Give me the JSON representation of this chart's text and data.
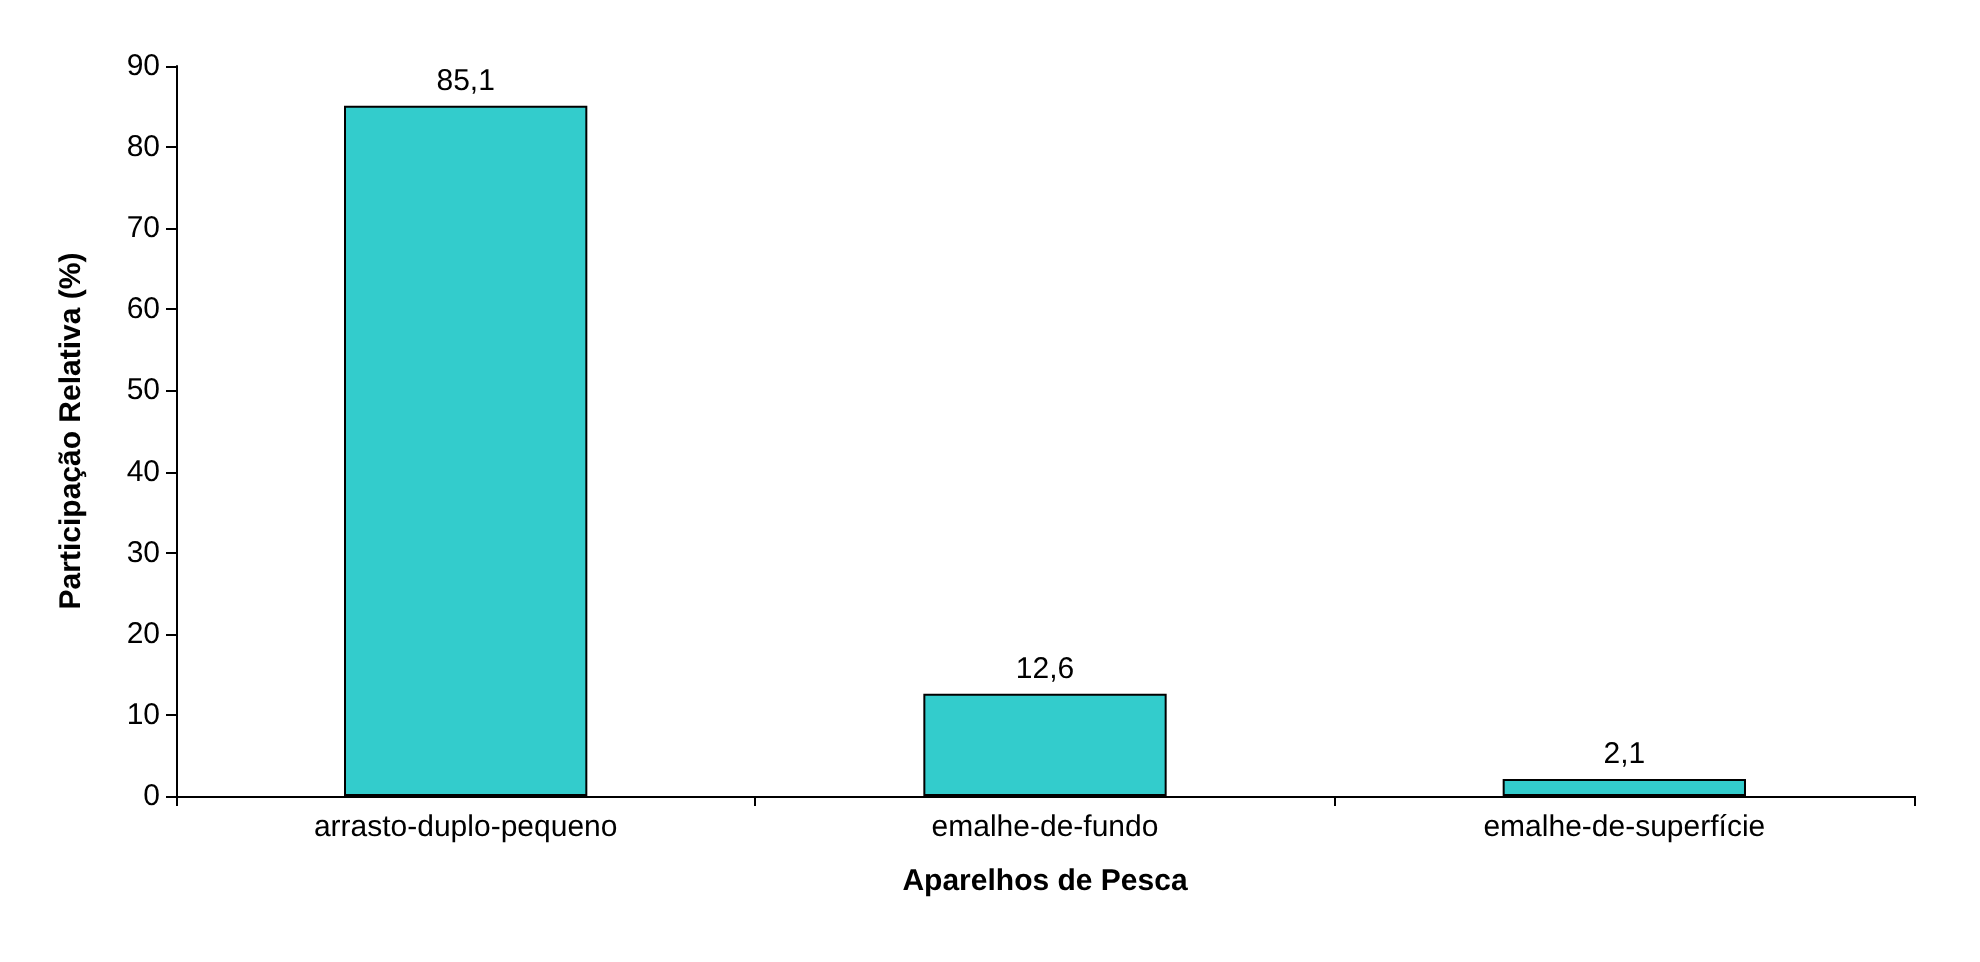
{
  "chart_data": {
    "type": "bar",
    "xlabel": "Aparelhos de Pesca",
    "ylabel": "Participação Relativa (%)",
    "categories": [
      "arrasto-duplo-pequeno",
      "emalhe-de-fundo",
      "emalhe-de-superfície"
    ],
    "values": [
      85.1,
      12.6,
      2.1
    ],
    "color": "#33cccc",
    "value_labels": [
      "85,1",
      "12,6",
      "2,1"
    ],
    "ylim": [
      0,
      90
    ],
    "yticks": [
      0,
      10,
      20,
      30,
      40,
      50,
      60,
      70,
      80,
      90
    ],
    "grid": false
  }
}
